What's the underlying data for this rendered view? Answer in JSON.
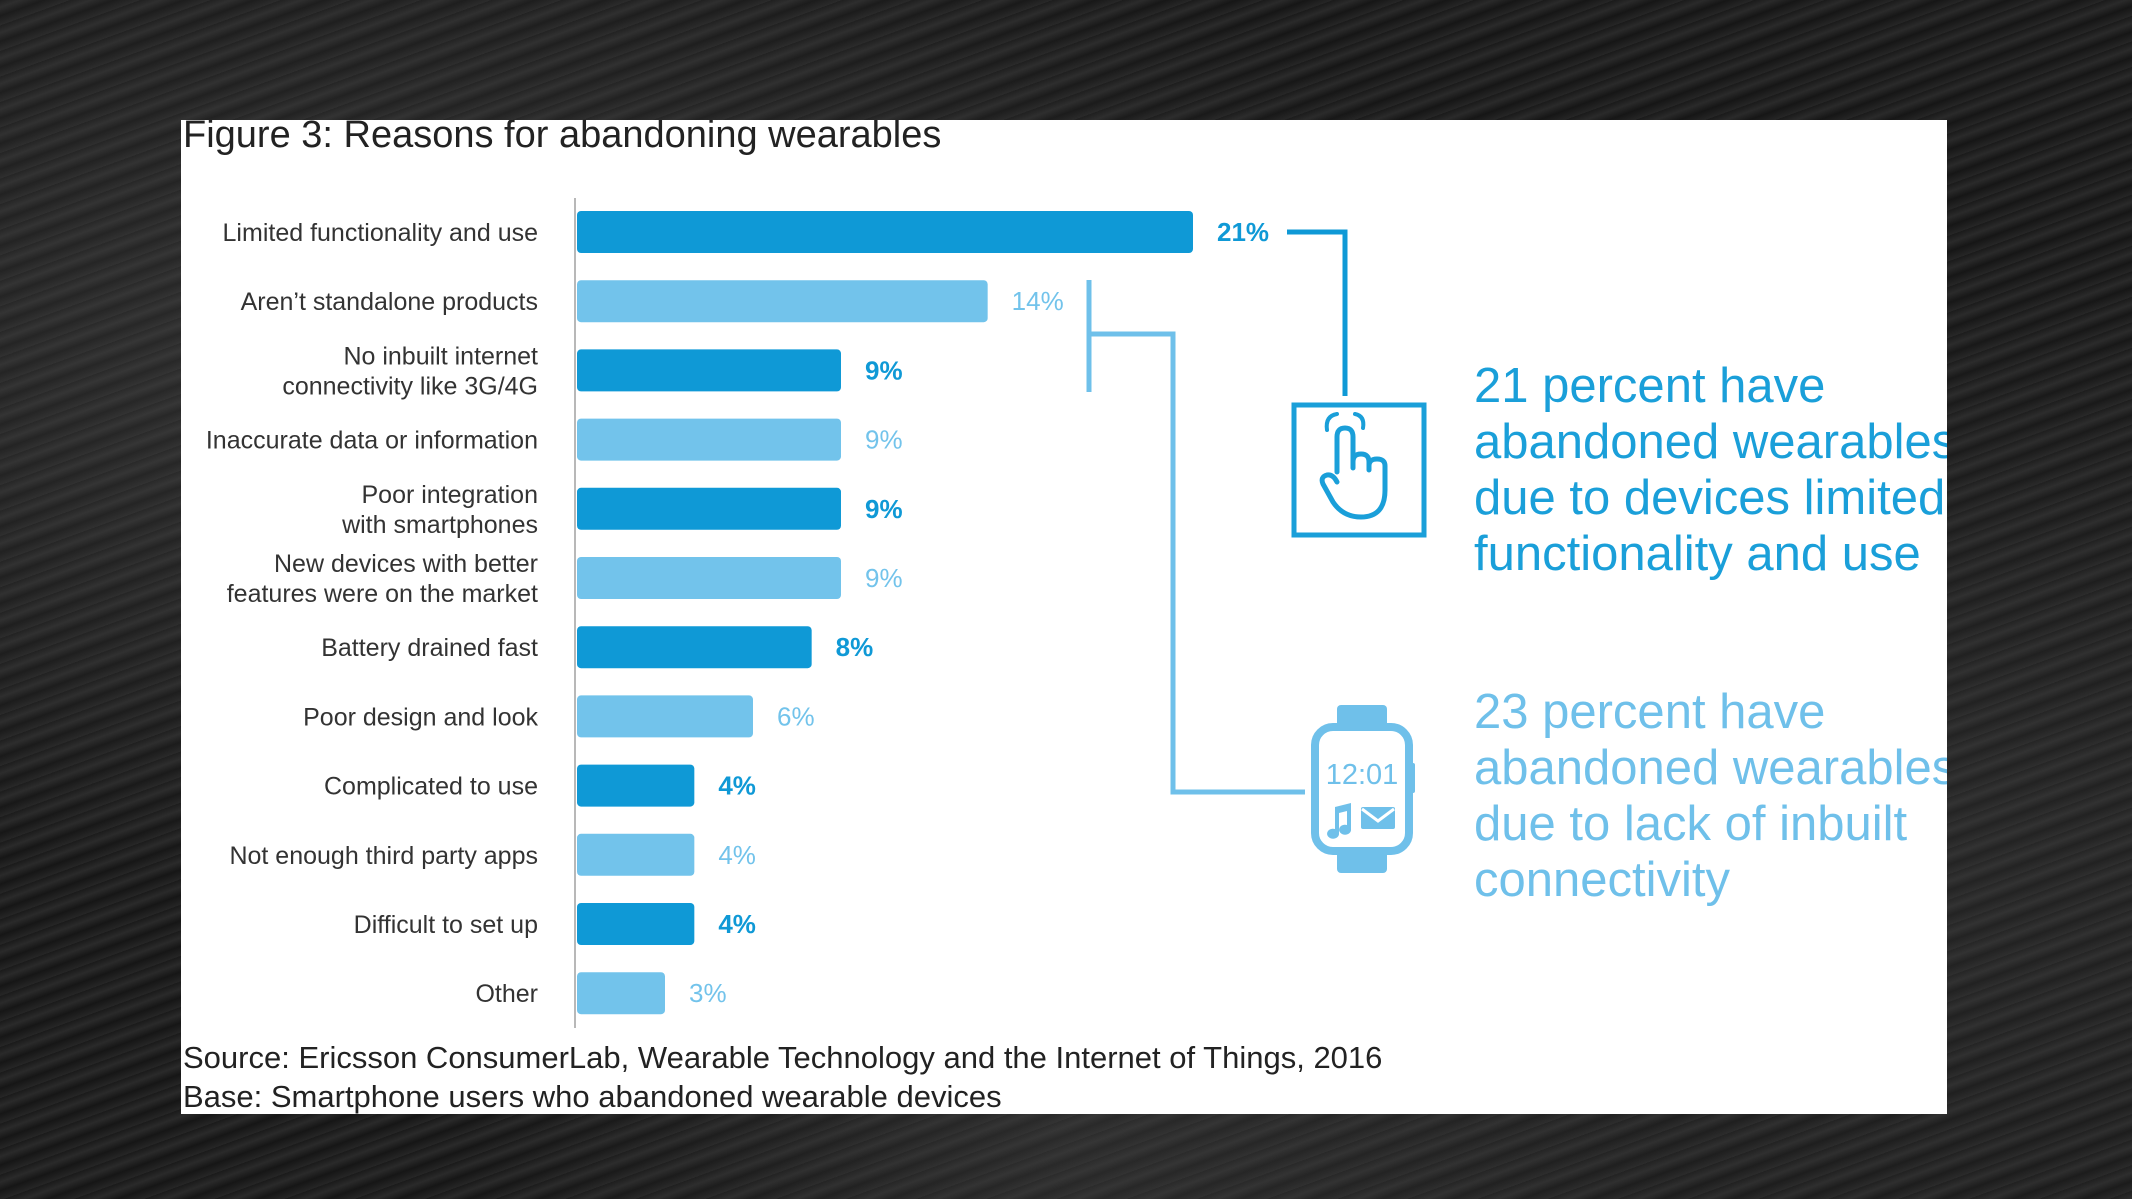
{
  "figure": {
    "title": "Figure 3: Reasons for abandoning wearables",
    "source": "Source: Ericsson ConsumerLab, Wearable Technology and the Internet of Things, 2016",
    "base": "Base: Smartphone users who abandoned wearable devices"
  },
  "colors": {
    "dark_bar": "#0f99d6",
    "light_bar": "#72c3eb",
    "line": "#6fc0ea",
    "callout_dark": "#1a9fd9",
    "callout_light": "#6fc0ea"
  },
  "icons": {
    "hand": "hand-touch-icon",
    "watch": "smartwatch-icon",
    "watch_time": "12:01"
  },
  "callouts": [
    {
      "lines": [
        "21 percent have",
        "abandoned wearables",
        "due to devices limited",
        "functionality and use"
      ]
    },
    {
      "lines": [
        "23 percent have",
        "abandoned wearables",
        "due to lack of inbuilt",
        "connectivity"
      ]
    }
  ],
  "chart_data": {
    "type": "bar",
    "orientation": "horizontal",
    "title": "Figure 3: Reasons for abandoning wearables",
    "unit": "%",
    "categories": [
      "Limited functionality and use",
      "Aren't standalone products",
      "No inbuilt internet connectivity like 3G/4G",
      "Inaccurate data or information",
      "Poor integration with smartphones",
      "New devices with better features were on the market",
      "Battery drained fast",
      "Poor design and look",
      "Complicated to use",
      "Not enough third party apps",
      "Difficult to set up",
      "Other"
    ],
    "category_lines": [
      [
        "Limited functionality and use"
      ],
      [
        "Aren’t standalone products"
      ],
      [
        "No inbuilt internet",
        "connectivity like 3G/4G"
      ],
      [
        "Inaccurate data or information"
      ],
      [
        "Poor integration",
        "with smartphones"
      ],
      [
        "New devices with better",
        "features were on the market"
      ],
      [
        "Battery drained fast"
      ],
      [
        "Poor design and look"
      ],
      [
        "Complicated to use"
      ],
      [
        "Not enough third party apps"
      ],
      [
        "Difficult to set up"
      ],
      [
        "Other"
      ]
    ],
    "values": [
      21,
      14,
      9,
      9,
      9,
      9,
      8,
      6,
      4,
      4,
      4,
      3
    ],
    "value_labels": [
      "21%",
      "14%",
      "9%",
      "9%",
      "9%",
      "9%",
      "8%",
      "6%",
      "4%",
      "4%",
      "4%",
      "3%"
    ],
    "shade": [
      "dark",
      "light",
      "dark",
      "light",
      "dark",
      "light",
      "dark",
      "light",
      "dark",
      "light",
      "dark",
      "light"
    ],
    "xlim": [
      0,
      21
    ],
    "grid": false,
    "legend": "none"
  }
}
